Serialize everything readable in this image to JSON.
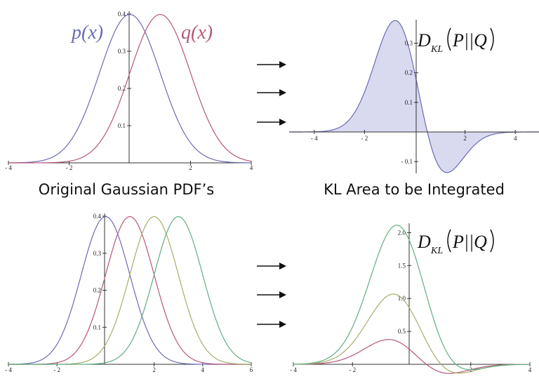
{
  "captions": {
    "top_left": "Original Gaussian PDF’s",
    "top_right": "KL Area to be Integrated"
  },
  "colors": {
    "p": "#6b6bb5",
    "q": "#b5577a",
    "r": "#a8ad6a",
    "s": "#5fae82",
    "fill": "#d9d9f0",
    "axis": "#333333"
  },
  "chart_data": [
    {
      "type": "line",
      "xlim": [
        -4,
        4
      ],
      "ylim": [
        0,
        0.4
      ],
      "x_ticks": [
        "- 4",
        "- 2",
        "2",
        "4"
      ],
      "y_ticks": [
        "0.1",
        "0.2",
        "0.3",
        "0.4"
      ],
      "series": [
        {
          "name": "p(x)",
          "mean": 0,
          "sd": 1,
          "color": "#6b6bb5"
        },
        {
          "name": "q(x)",
          "mean": 1,
          "sd": 1,
          "color": "#b5577a"
        }
      ]
    },
    {
      "type": "area",
      "title": "D_KL(P||Q)",
      "xlim": [
        -5,
        5
      ],
      "ylim": [
        -0.14,
        0.37
      ],
      "x_ticks": [
        "- 4",
        "- 2",
        "2",
        "4"
      ],
      "y_ticks": [
        "0.3",
        "0.2",
        "0.1",
        "- 0.1"
      ],
      "expression": "p(x) * (ln p(x) - ln q(x)), p = N(0,1), q = N(1,1)"
    },
    {
      "type": "line",
      "xlim": [
        -4,
        6
      ],
      "ylim": [
        0,
        0.4
      ],
      "x_ticks": [
        "- 4",
        "- 2",
        "2",
        "4",
        "6"
      ],
      "y_ticks": [
        "0.1",
        "0.2",
        "0.3",
        "0.4"
      ],
      "series": [
        {
          "mean": 0,
          "sd": 1,
          "color": "#6b6bb5"
        },
        {
          "mean": 1,
          "sd": 1,
          "color": "#b5577a"
        },
        {
          "mean": 2,
          "sd": 1,
          "color": "#a8ad6a"
        },
        {
          "mean": 3,
          "sd": 1,
          "color": "#5fae82"
        }
      ]
    },
    {
      "type": "line",
      "title": "D_KL(P||Q)",
      "xlim": [
        -4,
        4
      ],
      "ylim": [
        0,
        2.1
      ],
      "x_ticks": [
        "- 4",
        "- 2",
        "2",
        "4"
      ],
      "y_ticks": [
        "0.5",
        "1.0",
        "1.5",
        "2.0"
      ],
      "series": [
        {
          "q_mean": 1,
          "color": "#b5577a"
        },
        {
          "q_mean": 2,
          "color": "#a8ad6a"
        },
        {
          "q_mean": 3,
          "color": "#5fae82"
        }
      ]
    }
  ],
  "labels": {
    "p_label": "p(x)",
    "q_label": "q(x)",
    "dkl_D": "D",
    "dkl_sub": "KL",
    "dkl_body": "P||Q"
  }
}
